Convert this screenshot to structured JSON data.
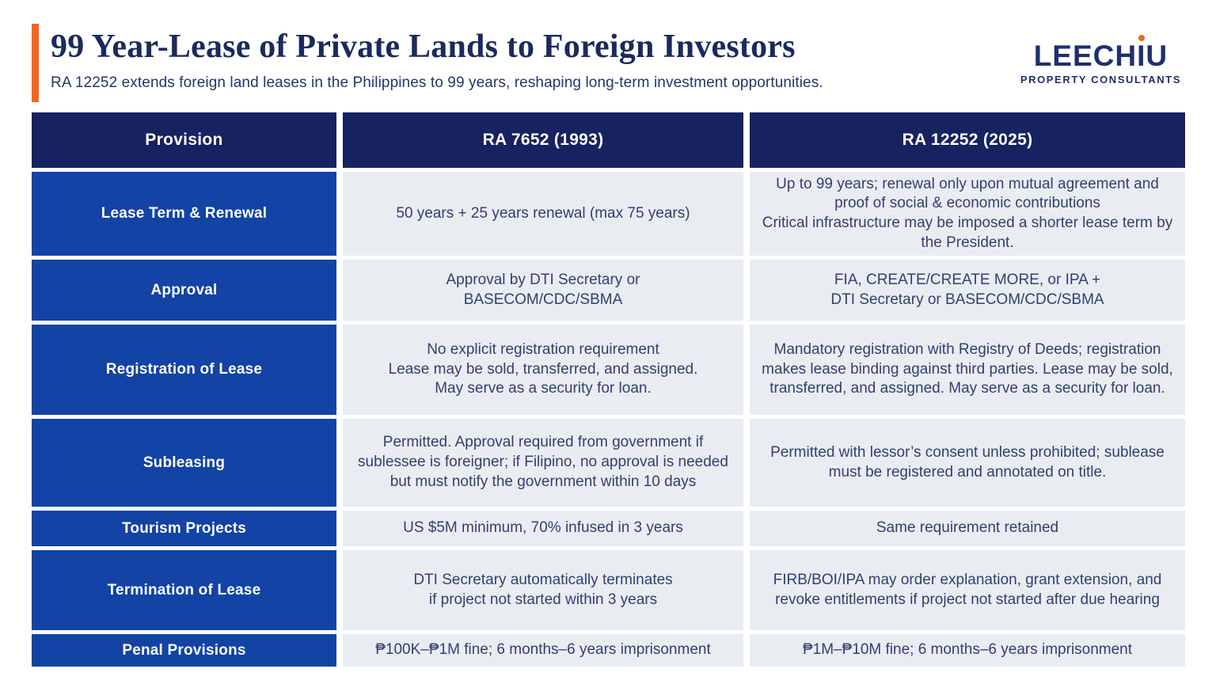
{
  "header": {
    "title": "99 Year-Lease of Private Lands to Foreign Investors",
    "subtitle": "RA 12252 extends foreign land leases in the Philippines to 99 years, reshaping long-term investment opportunities."
  },
  "logo": {
    "brand_pre": "LEECH",
    "brand_i": "I",
    "brand_post": "U",
    "tagline": "PROPERTY CONSULTANTS"
  },
  "table": {
    "columns": [
      "Provision",
      "RA 7652 (1993)",
      "RA 12252 (2025)"
    ],
    "rows": [
      {
        "provision": "Lease Term & Renewal",
        "ra7652": "50 years + 25 years renewal (max 75 years)",
        "ra12252": "Up to 99 years; renewal only upon mutual agreement and proof of social & economic contributions\nCritical infrastructure may be imposed a shorter lease term by the President."
      },
      {
        "provision": "Approval",
        "ra7652": "Approval by DTI Secretary or\nBASECOM/CDC/SBMA",
        "ra12252": "FIA, CREATE/CREATE MORE, or IPA +\nDTI Secretary or BASECOM/CDC/SBMA"
      },
      {
        "provision": "Registration of Lease",
        "ra7652": "No explicit registration requirement\nLease may be sold, transferred, and assigned.\nMay serve as a security for loan.",
        "ra12252": "Mandatory registration with Registry of Deeds; registration makes lease binding against third parties. Lease may be sold, transferred, and assigned. May serve as a security for loan."
      },
      {
        "provision": "Subleasing",
        "ra7652": "Permitted. Approval required from government if sublessee is foreigner; if Filipino, no approval is needed but must notify the government within 10 days",
        "ra12252": "Permitted with lessor’s consent unless prohibited; sublease must be registered and annotated on title."
      },
      {
        "provision": "Tourism Projects",
        "ra7652": "US $5M minimum, 70% infused in 3 years",
        "ra12252": "Same requirement retained"
      },
      {
        "provision": "Termination of Lease",
        "ra7652": "DTI Secretary automatically terminates\nif project not started within 3 years",
        "ra12252": "FIRB/BOI/IPA may order explanation, grant extension, and revoke entitlements if project not started after due hearing"
      },
      {
        "provision": "Penal Provisions",
        "ra7652": "₱100K–₱1M fine; 6 months–6 years imprisonment",
        "ra12252": "₱1M–₱10M fine; 6 months–6 years imprisonment"
      }
    ]
  },
  "colors": {
    "orange": "#F4661F",
    "navy-header": "#172260",
    "title-navy": "#1A2A5E",
    "royal-blue": "#1243A5",
    "cell-bg": "#E9EDF2",
    "cell-text": "#32406E",
    "logo-navy": "#1F2F6E",
    "page-bg": "#FFFFFF"
  }
}
